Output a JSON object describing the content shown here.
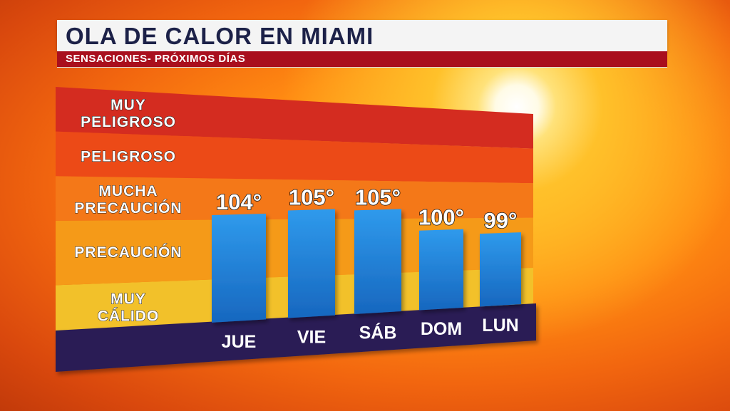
{
  "header": {
    "title": "OLA DE CALOR EN MIAMI",
    "subtitle": "SENSACIONES- PRÓXIMOS DÍAS"
  },
  "chart_data": {
    "type": "bar",
    "title": "OLA DE CALOR EN MIAMI",
    "subtitle": "SENSACIONES- PRÓXIMOS DÍAS",
    "categories": [
      "JUE",
      "VIE",
      "SÁB",
      "DOM",
      "LUN"
    ],
    "values": [
      104,
      105,
      105,
      100,
      99
    ],
    "value_labels": [
      "104°",
      "105°",
      "105°",
      "100°",
      "99°"
    ],
    "unit": "°F",
    "ylim": [
      80,
      130
    ],
    "bands": [
      {
        "lines": [
          "MUY",
          "CÁLIDO"
        ],
        "from": 80,
        "to": 90,
        "color": "#f2c12a"
      },
      {
        "lines": [
          "PRECAUCIÓN"
        ],
        "from": 90,
        "to": 103,
        "color": "#f59a18"
      },
      {
        "lines": [
          "MUCHA",
          "PRECAUCIÓN"
        ],
        "from": 103,
        "to": 112,
        "color": "#f47818"
      },
      {
        "lines": [
          "PELIGROSO"
        ],
        "from": 112,
        "to": 121,
        "color": "#ec4a17"
      },
      {
        "lines": [
          "MUY",
          "PELIGROSO"
        ],
        "from": 121,
        "to": 130,
        "color": "#d42c20"
      }
    ],
    "bar_color": "#1f86d6",
    "base_color": "#2b1f55",
    "grid": false,
    "legend": "none"
  }
}
